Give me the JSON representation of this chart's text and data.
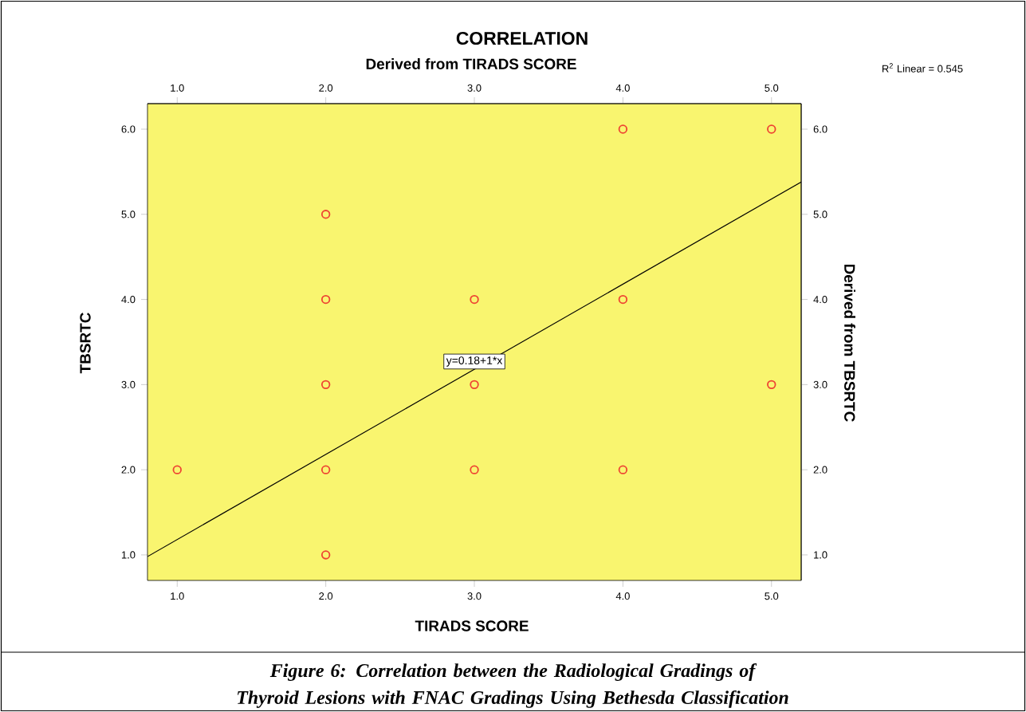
{
  "chart_data": {
    "type": "scatter",
    "title": "CORRELATION",
    "xlabel": "TIRADS SCORE",
    "ylabel": "TBSRTC",
    "x2label": "Derived from TIRADS SCORE",
    "y2label": "Derived from TBSRTC",
    "xlim": [
      0.8,
      5.2
    ],
    "ylim": [
      0.7,
      6.3
    ],
    "x2lim": [
      0.8,
      5.2
    ],
    "y2lim": [
      0.7,
      6.3
    ],
    "xticks": [
      {
        "value": 1,
        "label": "1.0"
      },
      {
        "value": 2,
        "label": "2.0"
      },
      {
        "value": 3,
        "label": "3.0"
      },
      {
        "value": 4,
        "label": "4.0"
      },
      {
        "value": 5,
        "label": "5.0"
      }
    ],
    "x2ticks": [
      {
        "value": 1,
        "label": "1.0"
      },
      {
        "value": 2,
        "label": "2.0"
      },
      {
        "value": 3,
        "label": "3.0"
      },
      {
        "value": 4,
        "label": "4.0"
      },
      {
        "value": 5,
        "label": "5.0"
      }
    ],
    "yticks": [
      {
        "value": 1,
        "label": "1.0"
      },
      {
        "value": 2,
        "label": "2.0"
      },
      {
        "value": 3,
        "label": "3.0"
      },
      {
        "value": 4,
        "label": "4.0"
      },
      {
        "value": 5,
        "label": "5.0"
      },
      {
        "value": 6,
        "label": "6.0"
      }
    ],
    "y2ticks": [
      {
        "value": 1,
        "label": "1.0"
      },
      {
        "value": 2,
        "label": "2.0"
      },
      {
        "value": 3,
        "label": "3.0"
      },
      {
        "value": 4,
        "label": "4.0"
      },
      {
        "value": 5,
        "label": "5.0"
      },
      {
        "value": 6,
        "label": "6.0"
      }
    ],
    "series": [
      {
        "type": "scatter",
        "color": "#ee4433",
        "marker": "circle",
        "x": [
          1,
          2,
          2,
          2,
          2,
          2,
          3,
          3,
          3,
          4,
          4,
          4,
          5,
          5
        ],
        "values": [
          2,
          5,
          4,
          3,
          2,
          1,
          4,
          3,
          2,
          6,
          4,
          2,
          6,
          3
        ]
      },
      {
        "type": "line",
        "color": "#000000",
        "line_style": "solid",
        "x": [
          0.8,
          5.2
        ],
        "values": [
          0.98,
          5.38
        ]
      }
    ],
    "annotations": [
      "R$^{2}$ Linear = 0.545",
      {
        "text": "y=0.18+1*x",
        "x": 3.0,
        "y": 3.18
      },
      "Figure 6: Correlation between the Radiological Gradings of Thyroid Lesions with FNAC Gradings Using Bethesda Classification"
    ]
  }
}
